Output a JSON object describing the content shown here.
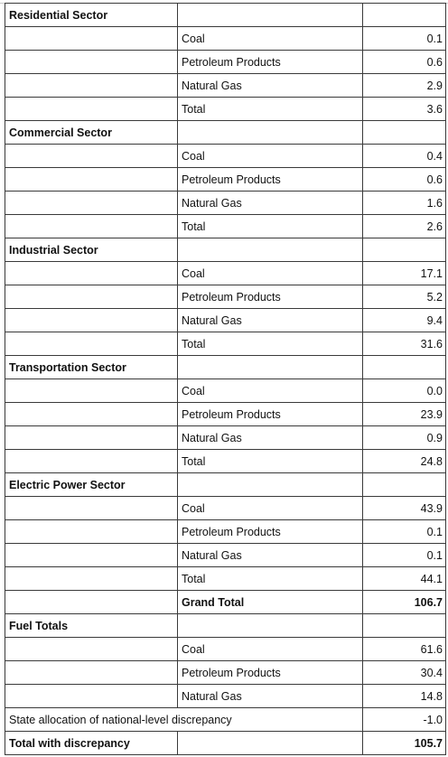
{
  "sections": [
    {
      "title": "Residential Sector",
      "rows": [
        {
          "label": "Coal",
          "value": "0.1"
        },
        {
          "label": "Petroleum Products",
          "value": "0.6"
        },
        {
          "label": "Natural Gas",
          "value": "2.9"
        },
        {
          "label": "Total",
          "value": "3.6"
        }
      ]
    },
    {
      "title": "Commercial Sector",
      "rows": [
        {
          "label": "Coal",
          "value": "0.4"
        },
        {
          "label": "Petroleum Products",
          "value": "0.6"
        },
        {
          "label": "Natural Gas",
          "value": "1.6"
        },
        {
          "label": "Total",
          "value": "2.6"
        }
      ]
    },
    {
      "title": "Industrial Sector",
      "rows": [
        {
          "label": "Coal",
          "value": "17.1"
        },
        {
          "label": "Petroleum Products",
          "value": "5.2"
        },
        {
          "label": "Natural Gas",
          "value": "9.4"
        },
        {
          "label": "Total",
          "value": "31.6"
        }
      ]
    },
    {
      "title": "Transportation Sector",
      "rows": [
        {
          "label": "Coal",
          "value": "0.0"
        },
        {
          "label": "Petroleum Products",
          "value": "23.9"
        },
        {
          "label": "Natural Gas",
          "value": "0.9"
        },
        {
          "label": "Total",
          "value": "24.8"
        }
      ]
    },
    {
      "title": "Electric Power Sector",
      "rows": [
        {
          "label": "Coal",
          "value": "43.9"
        },
        {
          "label": "Petroleum Products",
          "value": "0.1"
        },
        {
          "label": "Natural Gas",
          "value": "0.1"
        },
        {
          "label": "Total",
          "value": "44.1"
        }
      ]
    }
  ],
  "grand_total": {
    "label": "Grand Total",
    "value": "106.7"
  },
  "fuel_totals": {
    "title": "Fuel Totals",
    "rows": [
      {
        "label": "Coal",
        "value": "61.6"
      },
      {
        "label": "Petroleum Products",
        "value": "30.4"
      },
      {
        "label": "Natural Gas",
        "value": "14.8"
      }
    ]
  },
  "discrepancy": {
    "label": "State allocation of national-level discrepancy",
    "value": "-1.0"
  },
  "total_with_discrepancy": {
    "label": "Total with discrepancy",
    "value": "105.7"
  }
}
